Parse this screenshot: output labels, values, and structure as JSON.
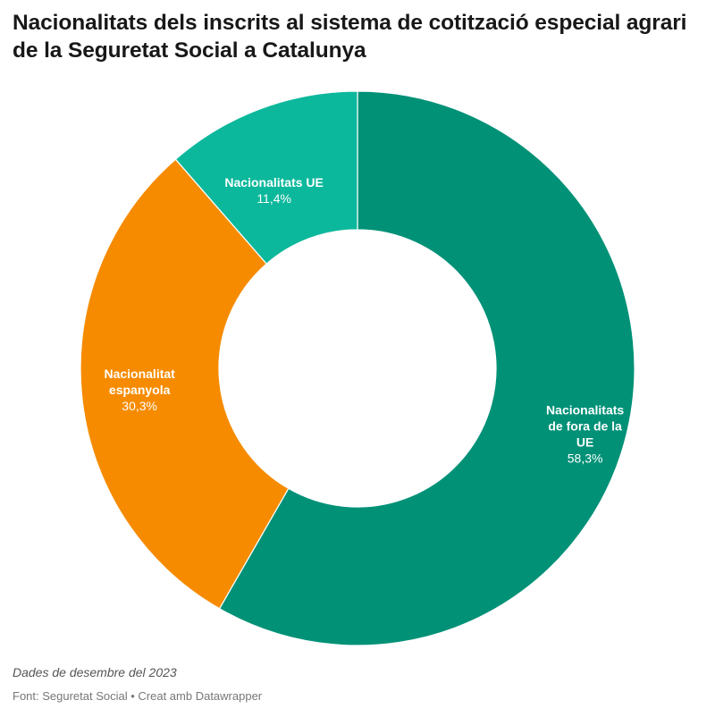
{
  "chart_data": {
    "type": "pie",
    "variant": "donut",
    "title": "Nacionalitats dels inscrits al sistema de cotització especial agrari de la Seguretat Social a Catalunya",
    "slices": [
      {
        "name": "Nacionalitats de fora de la UE",
        "label_lines": [
          "Nacionalitats",
          "de fora de la",
          "UE"
        ],
        "value": 58.3,
        "value_label": "58,3%",
        "color": "#009177"
      },
      {
        "name": "Nacionalitat espanyola",
        "label_lines": [
          "Nacionalitat",
          "espanyola"
        ],
        "value": 30.3,
        "value_label": "30,3%",
        "color": "#f68b00"
      },
      {
        "name": "Nacionalitats UE",
        "label_lines": [
          "Nacionalitats UE"
        ],
        "value": 11.4,
        "value_label": "11,4%",
        "color": "#0cb89c"
      }
    ],
    "note": "Dades de desembre del 2023",
    "source": "Font: Seguretat Social • Creat amb Datawrapper"
  }
}
